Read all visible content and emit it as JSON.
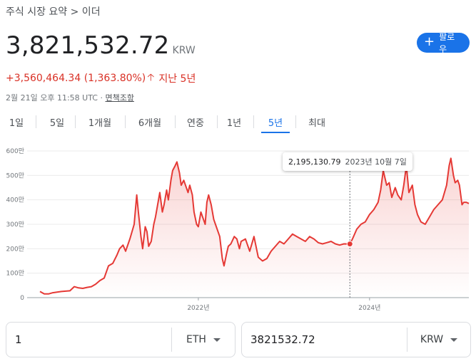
{
  "header": {
    "breadcrumb": "주식 시장 요약 > 이더",
    "price": "3,821,532.72",
    "currency": "KRW",
    "follow_label": "팔로우",
    "change_text": "+3,560,464.34 (1,363.80%)",
    "change_period": "지난 5년",
    "timestamp": "2월 21일 오후 11:58 UTC · ",
    "disclaimer": "면책조항"
  },
  "tabs": [
    {
      "label": "1일"
    },
    {
      "label": "5일"
    },
    {
      "label": "1개월"
    },
    {
      "label": "6개월"
    },
    {
      "label": "연중"
    },
    {
      "label": "1년"
    },
    {
      "label": "5년"
    },
    {
      "label": "최대"
    }
  ],
  "active_tab": "5년",
  "tooltip": {
    "value": "2,195,130.79",
    "date": "2023년 10월 7일"
  },
  "converter": {
    "from_value": "1",
    "from_unit": "ETH",
    "to_value": "3821532.72",
    "to_unit": "KRW"
  },
  "colors": {
    "line": "#e53935",
    "accent": "#1a73e8",
    "negative_up": "#d93025"
  },
  "chart_data": {
    "type": "area",
    "title": "",
    "xlabel": "",
    "ylabel": "",
    "ylim": [
      0,
      600
    ],
    "x_range": [
      2020.0,
      2025.16
    ],
    "yticks": [
      0,
      100,
      200,
      300,
      400,
      500,
      600
    ],
    "ytick_labels": [
      "0",
      "100만",
      "200만",
      "300만",
      "400만",
      "500만",
      "600만"
    ],
    "xticks": [
      2022.0,
      2024.0
    ],
    "xtick_labels": [
      "2022년",
      "2024년"
    ],
    "grid": true,
    "unit": "만 KRW",
    "x": [
      2020.15,
      2020.2,
      2020.25,
      2020.3,
      2020.4,
      2020.5,
      2020.55,
      2020.6,
      2020.65,
      2020.7,
      2020.75,
      2020.8,
      2020.85,
      2020.9,
      2020.95,
      2021.0,
      2021.05,
      2021.08,
      2021.12,
      2021.15,
      2021.2,
      2021.25,
      2021.28,
      2021.3,
      2021.33,
      2021.35,
      2021.38,
      2021.4,
      2021.42,
      2021.45,
      2021.48,
      2021.5,
      2021.55,
      2021.58,
      2021.6,
      2021.63,
      2021.65,
      2021.68,
      2021.7,
      2021.73,
      2021.75,
      2021.78,
      2021.8,
      2021.83,
      2021.85,
      2021.88,
      2021.9,
      2021.93,
      2021.95,
      2021.98,
      2022.0,
      2022.03,
      2022.05,
      2022.08,
      2022.1,
      2022.12,
      2022.15,
      2022.18,
      2022.2,
      2022.25,
      2022.28,
      2022.3,
      2022.33,
      2022.35,
      2022.38,
      2022.42,
      2022.45,
      2022.48,
      2022.5,
      2022.55,
      2022.6,
      2022.65,
      2022.7,
      2022.75,
      2022.8,
      2022.85,
      2022.9,
      2022.95,
      2023.0,
      2023.05,
      2023.1,
      2023.15,
      2023.2,
      2023.25,
      2023.3,
      2023.35,
      2023.4,
      2023.45,
      2023.5,
      2023.55,
      2023.6,
      2023.65,
      2023.7,
      2023.77,
      2023.8,
      2023.85,
      2023.9,
      2023.95,
      2024.0,
      2024.05,
      2024.1,
      2024.13,
      2024.16,
      2024.2,
      2024.23,
      2024.26,
      2024.3,
      2024.33,
      2024.37,
      2024.4,
      2024.43,
      2024.46,
      2024.5,
      2024.53,
      2024.56,
      2024.6,
      2024.65,
      2024.7,
      2024.75,
      2024.8,
      2024.85,
      2024.9,
      2024.93,
      2024.95,
      2024.98,
      2025.0,
      2025.03,
      2025.05,
      2025.08,
      2025.1,
      2025.13,
      2025.16
    ],
    "values": [
      25,
      15,
      15,
      20,
      25,
      28,
      45,
      40,
      38,
      42,
      45,
      55,
      70,
      80,
      130,
      140,
      175,
      200,
      215,
      190,
      240,
      300,
      420,
      350,
      250,
      200,
      290,
      270,
      210,
      230,
      300,
      330,
      430,
      350,
      380,
      440,
      400,
      480,
      520,
      540,
      555,
      510,
      460,
      480,
      460,
      430,
      460,
      420,
      350,
      300,
      290,
      350,
      330,
      300,
      390,
      420,
      380,
      320,
      300,
      250,
      160,
      130,
      180,
      210,
      220,
      250,
      240,
      200,
      230,
      240,
      190,
      250,
      165,
      150,
      160,
      190,
      210,
      230,
      220,
      240,
      260,
      250,
      240,
      230,
      250,
      240,
      225,
      220,
      225,
      230,
      220,
      215,
      220,
      219.5,
      240,
      280,
      300,
      310,
      340,
      360,
      390,
      440,
      520,
      460,
      470,
      410,
      450,
      420,
      400,
      460,
      540,
      430,
      460,
      380,
      340,
      310,
      300,
      330,
      360,
      380,
      400,
      460,
      540,
      570,
      500,
      470,
      480,
      460,
      380,
      390,
      390,
      385
    ],
    "highlight": {
      "x": 2023.77,
      "y": 219.5
    }
  }
}
